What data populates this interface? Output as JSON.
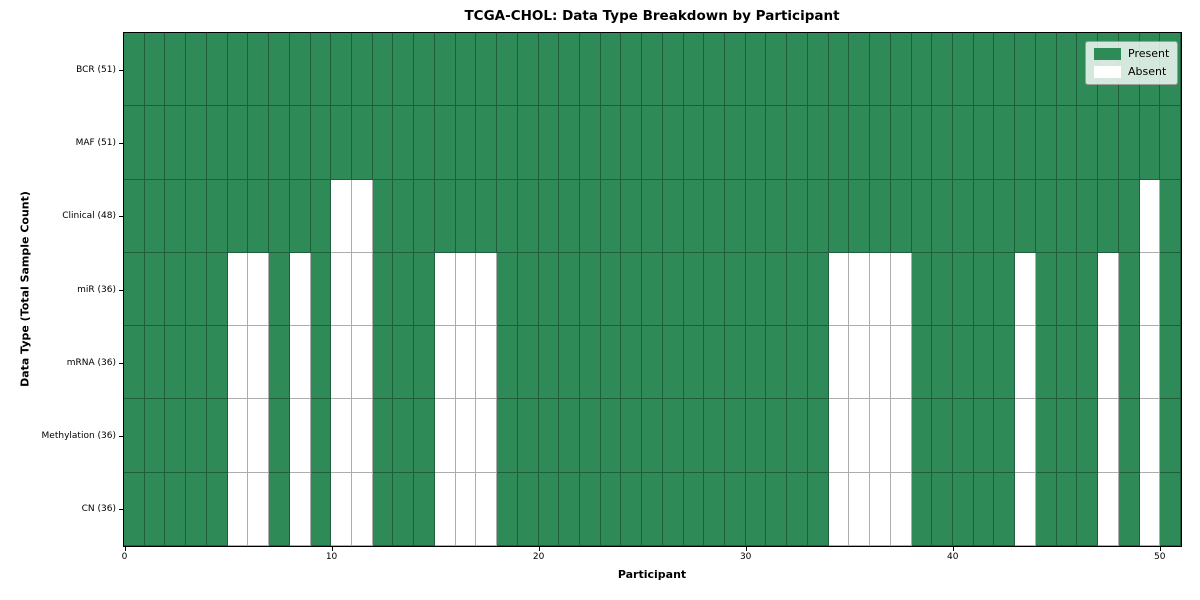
{
  "figure": {
    "title": "TCGA-CHOL: Data Type Breakdown by Participant"
  },
  "chart_data": {
    "type": "heatmap",
    "title": "TCGA-CHOL: Data Type Breakdown by Participant",
    "xlabel": "Participant",
    "ylabel": "Data Type (Total Sample Count)",
    "x_ticks": [
      0,
      10,
      20,
      30,
      40,
      50
    ],
    "x_range": [
      0,
      51
    ],
    "n_participants": 51,
    "grid": true,
    "legend_position": "upper right",
    "legend": [
      {
        "label": "Present",
        "color": "#2e8b57"
      },
      {
        "label": "Absent",
        "color": "#ffffff"
      }
    ],
    "colors": {
      "present": "#2e8b57",
      "absent": "#ffffff",
      "cell_line": "rgba(0,0,0,0.32)",
      "axis": "#000000"
    },
    "rows": [
      {
        "label": "BCR (51)",
        "data_type": "BCR",
        "total_samples": 51,
        "absent_participants": []
      },
      {
        "label": "MAF (51)",
        "data_type": "MAF",
        "total_samples": 51,
        "absent_participants": []
      },
      {
        "label": "Clinical (48)",
        "data_type": "Clinical",
        "total_samples": 48,
        "absent_participants": [
          10,
          11,
          49
        ]
      },
      {
        "label": "miR (36)",
        "data_type": "miR",
        "total_samples": 36,
        "absent_participants": [
          5,
          6,
          8,
          10,
          11,
          15,
          16,
          17,
          34,
          35,
          36,
          37,
          43,
          47,
          49
        ]
      },
      {
        "label": "mRNA (36)",
        "data_type": "mRNA",
        "total_samples": 36,
        "absent_participants": [
          5,
          6,
          8,
          10,
          11,
          15,
          16,
          17,
          34,
          35,
          36,
          37,
          43,
          47,
          49
        ]
      },
      {
        "label": "Methylation (36)",
        "data_type": "Methylation",
        "total_samples": 36,
        "absent_participants": [
          5,
          6,
          8,
          10,
          11,
          15,
          16,
          17,
          34,
          35,
          36,
          37,
          43,
          47,
          49
        ]
      },
      {
        "label": "CN (36)",
        "data_type": "CN",
        "total_samples": 36,
        "absent_participants": [
          5,
          6,
          8,
          10,
          11,
          15,
          16,
          17,
          34,
          35,
          36,
          37,
          43,
          47,
          49
        ]
      }
    ]
  }
}
